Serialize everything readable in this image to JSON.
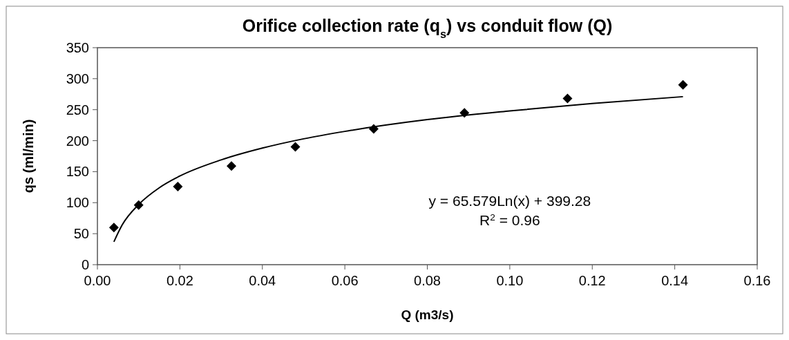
{
  "chart_data": {
    "type": "scatter",
    "title": "Orifice collection rate (q$_{s}$) vs conduit flow (Q)",
    "xlabel": "Q (m3/s)",
    "ylabel": "qs (ml/min)",
    "series": [
      {
        "color": "#000000",
        "marker": "diamond",
        "x": [
          0.004,
          0.01,
          0.0195,
          0.0325,
          0.048,
          0.067,
          0.089,
          0.114,
          0.142
        ],
        "values": [
          60,
          96,
          126,
          159,
          190,
          219,
          245,
          268,
          290
        ]
      },
      {
        "type": "line",
        "color": "#000000",
        "marker": "none",
        "line_style": "solid",
        "x": [
          0.004,
          0.006,
          0.01,
          0.015,
          0.02,
          0.03,
          0.04,
          0.05,
          0.06,
          0.08,
          0.1,
          0.12,
          0.142
        ],
        "values": [
          37,
          64,
          97,
          124,
          143,
          169,
          188,
          203,
          215,
          234,
          248,
          260,
          271
        ]
      }
    ],
    "xlim": [
      0,
      0.16
    ],
    "xticks": [
      {
        "value": 0,
        "label": "0.00"
      },
      {
        "value": 0.02,
        "label": "0.02"
      },
      {
        "value": 0.04,
        "label": "0.04"
      },
      {
        "value": 0.06,
        "label": "0.06"
      },
      {
        "value": 0.08,
        "label": "0.08"
      },
      {
        "value": 0.1,
        "label": "0.10"
      },
      {
        "value": 0.12,
        "label": "0.12"
      },
      {
        "value": 0.14,
        "label": "0.14"
      },
      {
        "value": 0.16,
        "label": "0.16"
      }
    ],
    "ylim": [
      0,
      350
    ],
    "yticks": [
      0,
      50,
      100,
      150,
      200,
      250,
      300,
      350
    ],
    "grid": false,
    "annotations": [
      "y = 65.579Ln(x) + 399.28",
      "R$^{2}$ = 0.96"
    ]
  }
}
